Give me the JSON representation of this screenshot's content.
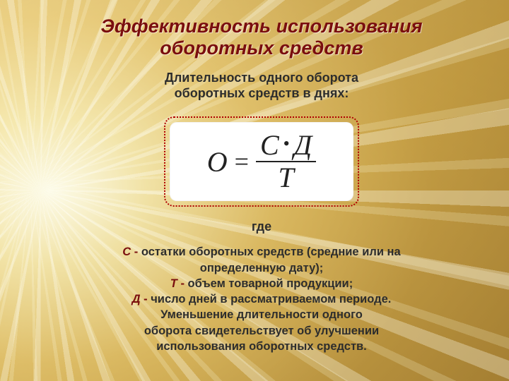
{
  "colors": {
    "title_color": "#7a0e0e",
    "text_color": "#2d2d2d",
    "border_dotted": "#b00000",
    "formula_bg": "#ffffff",
    "var_color": "#7a0e0e"
  },
  "typography": {
    "title_fontsize": 27,
    "subtitle_fontsize": 18,
    "formula_fontsize": 40,
    "legend_fontsize": 16.5,
    "title_style": "bold italic",
    "body_weight": "bold"
  },
  "title_line1": "Эффективность использования",
  "title_line2": "оборотных средств",
  "subtitle_line1": "Длительность одного оборота",
  "subtitle_line2": "оборотных средств в днях:",
  "formula": {
    "lhs": "О",
    "eq": "=",
    "num_left": "С",
    "op": "•",
    "num_right": "Д",
    "den": "Т"
  },
  "gde": "где",
  "legend": {
    "c_var": "С",
    "c_dash": " - ",
    "c_text1": "остатки оборотных средств (средние или на",
    "c_text2": "определенную дату);",
    "t_var": "Т",
    "t_dash": " - ",
    "t_text": "объем товарной продукции;",
    "d_var": "Д",
    "d_dash": " - ",
    "d_text": "число дней в рассматриваемом периоде.",
    "tail1": "Уменьшение длительности одного",
    "tail2": "оборота свидетельствует об улучшении",
    "tail3": "использования оборотных средств."
  }
}
